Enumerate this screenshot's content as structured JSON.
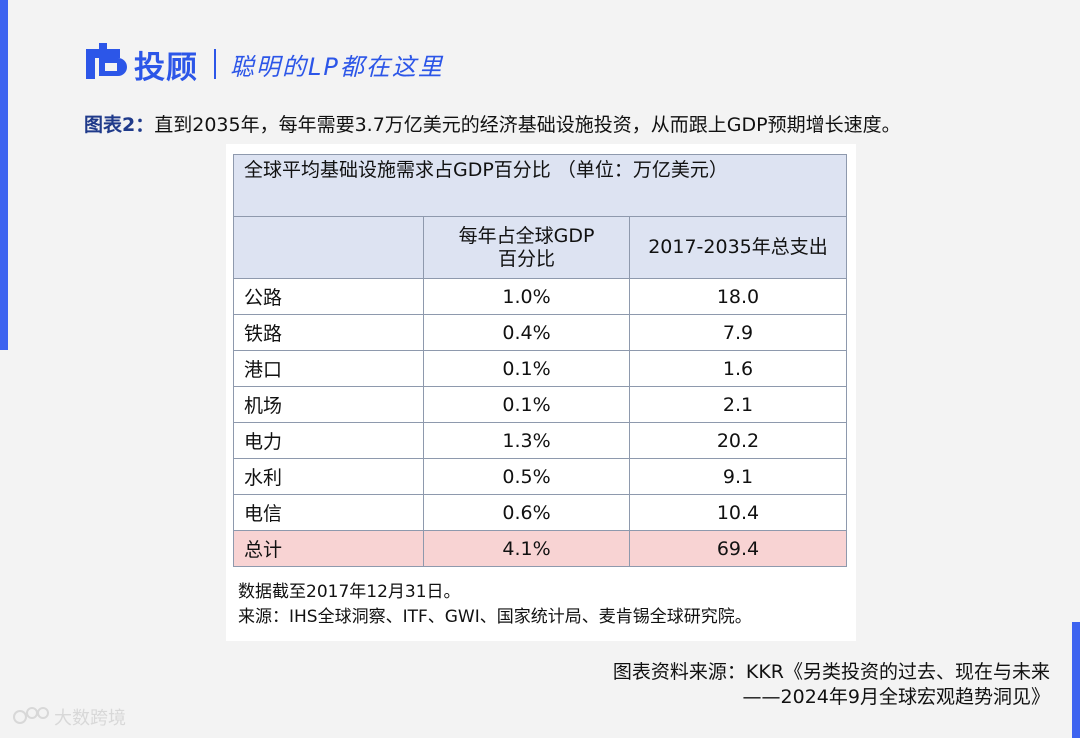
{
  "colors": {
    "brand": "#2c56e8",
    "accent": "#3d63f0",
    "header_fill": "#dde3f2",
    "total_fill": "#f8d3d3"
  },
  "header": {
    "logo_icon": "brand-logo-icon",
    "brand": "投顾",
    "slogan": "聪明的LP都在这里"
  },
  "caption": {
    "label": "图表2：",
    "text": "直到2035年，每年需要3.7万亿美元的经济基础设施投资，从而跟上GDP预期增长速度。"
  },
  "table": {
    "title": "全球平均基础设施需求占GDP百分比 （单位：万亿美元）",
    "col2_line1": "每年占全球GDP",
    "col2_line2": "百分比",
    "col3": "2017-2035年总支出",
    "rows": [
      {
        "sector": "公路",
        "pct": "1.0%",
        "total": "18.0"
      },
      {
        "sector": "铁路",
        "pct": "0.4%",
        "total": "7.9"
      },
      {
        "sector": "港口",
        "pct": "0.1%",
        "total": "1.6"
      },
      {
        "sector": "机场",
        "pct": "0.1%",
        "total": "2.1"
      },
      {
        "sector": "电力",
        "pct": "1.3%",
        "total": "20.2"
      },
      {
        "sector": "水利",
        "pct": "0.5%",
        "total": "9.1"
      },
      {
        "sector": "电信",
        "pct": "0.6%",
        "total": "10.4"
      }
    ],
    "total_row": {
      "sector": "总计",
      "pct": "4.1%",
      "total": "69.4"
    }
  },
  "notes": {
    "date_note": "数据截至2017年12月31日。",
    "source_note": "来源：IHS全球洞察、ITF、GWI、国家统计局、麦肯锡全球研究院。"
  },
  "source": {
    "line1": "图表资料来源：KKR《另类投资的过去、现在与未来",
    "line2": "——2024年9月全球宏观趋势洞见》"
  },
  "watermark": {
    "icon": "watermark-logo-icon",
    "text": "大数跨境"
  }
}
